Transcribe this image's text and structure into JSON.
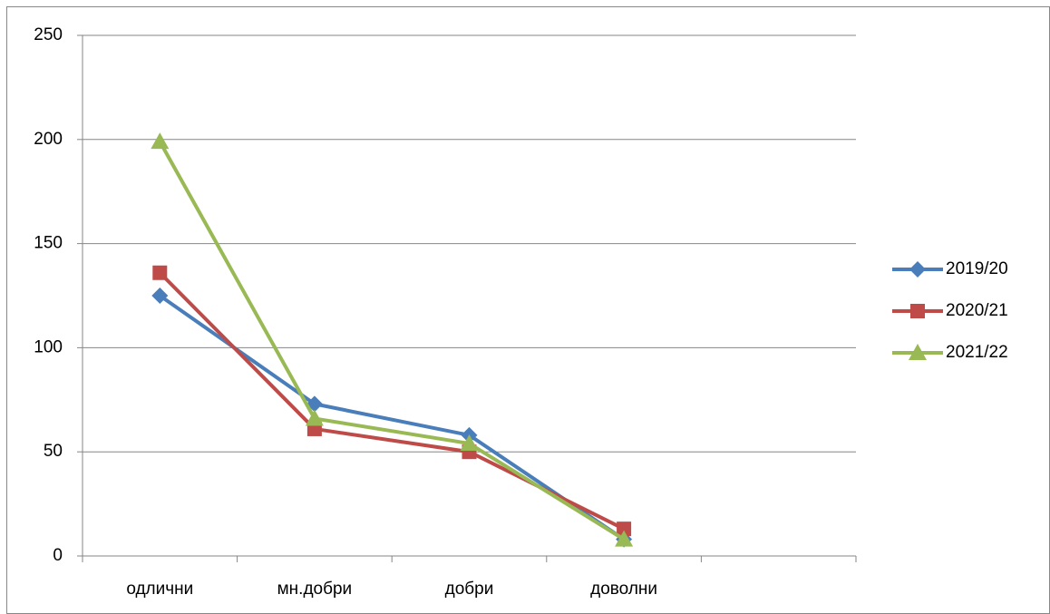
{
  "chart_data": {
    "type": "line",
    "categories": [
      "одлични",
      "мн.добри",
      "добри",
      "доволни",
      null
    ],
    "series": [
      {
        "name": "2019/20",
        "color": "#4a7ebb",
        "marker": "diamond",
        "values": [
          125,
          73,
          58,
          8,
          null
        ]
      },
      {
        "name": "2020/21",
        "color": "#be4b48",
        "marker": "square",
        "values": [
          136,
          61,
          50,
          13,
          null
        ]
      },
      {
        "name": "2021/22",
        "color": "#98b954",
        "marker": "triangle",
        "values": [
          199,
          66,
          54,
          8,
          null
        ]
      }
    ],
    "ylim": [
      0,
      250
    ],
    "yticks": [
      0,
      50,
      100,
      150,
      200,
      250
    ],
    "grid": true,
    "legend": "right"
  }
}
